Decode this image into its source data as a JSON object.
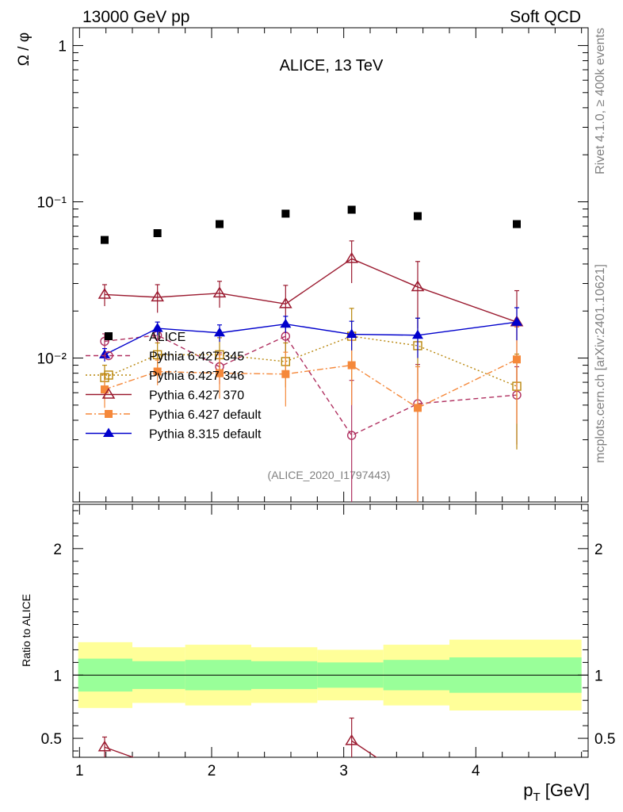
{
  "header": {
    "left_title": "13000 GeV pp",
    "right_title": "Soft QCD",
    "plot_title": "ALICE, 13 TeV",
    "analysis_id": "(ALICE_2020_I1797443)",
    "side_text_top": "Rivet 4.1.0, ≥ 400k events",
    "side_text_bottom": "mcplots.cern.ch [arXiv:2401.10621]"
  },
  "chart_data": [
    {
      "type": "scatter",
      "title": "ALICE, 13 TeV",
      "xlabel": "p_T [GeV]",
      "ylabel": "Ω / φ",
      "yscale": "log",
      "xlim": [
        0.95,
        4.85
      ],
      "ylim": [
        0.0012,
        1.3
      ],
      "x_ticks": [
        1,
        2,
        3,
        4
      ],
      "y_ticks": [
        {
          "value": 1,
          "label": "1"
        },
        {
          "value": 0.1,
          "label": "10⁻¹"
        },
        {
          "value": 0.01,
          "label": "10⁻²"
        }
      ],
      "legend_position": "lower-left",
      "series": [
        {
          "name": "ALICE",
          "color": "#000000",
          "marker": "square-filled",
          "style": "none",
          "x": [
            1.19,
            1.59,
            2.06,
            2.56,
            3.06,
            3.56,
            4.31
          ],
          "y": [
            0.057,
            0.063,
            0.072,
            0.084,
            0.089,
            0.081,
            0.072
          ],
          "yerr": [
            0,
            0,
            0,
            0,
            0,
            0,
            0
          ]
        },
        {
          "name": "Pythia 6.427 345",
          "color": "#b03060",
          "marker": "circle-open",
          "style": "dashed",
          "x": [
            1.19,
            1.59,
            2.06,
            2.56,
            3.06,
            3.56,
            4.31
          ],
          "y": [
            0.0128,
            0.014,
            0.0088,
            0.0138,
            0.0032,
            0.0051,
            0.0058
          ],
          "yerr": [
            0.0015,
            0.0016,
            0.002,
            0.003,
            0.004,
            0.004,
            0.003
          ]
        },
        {
          "name": "Pythia 6.427 346",
          "color": "#b8860b",
          "marker": "square-open",
          "style": "dotted",
          "x": [
            1.19,
            1.59,
            2.06,
            2.56,
            3.06,
            3.56,
            4.31
          ],
          "y": [
            0.0075,
            0.0105,
            0.0105,
            0.0095,
            0.0138,
            0.012,
            0.0066
          ],
          "yerr": [
            0.0015,
            0.002,
            0.003,
            0.003,
            0.007,
            0.006,
            0.004
          ]
        },
        {
          "name": "Pythia 6.427 370",
          "color": "#9b1b30",
          "marker": "triangle-open",
          "style": "solid",
          "x": [
            1.19,
            1.59,
            2.06,
            2.56,
            3.06,
            3.56,
            4.31
          ],
          "y": [
            0.0255,
            0.0245,
            0.026,
            0.0222,
            0.0432,
            0.0285,
            0.017
          ],
          "yerr": [
            0.004,
            0.005,
            0.005,
            0.007,
            0.013,
            0.013,
            0.01
          ]
        },
        {
          "name": "Pythia 6.427 default",
          "color": "#f5883a",
          "marker": "square-filled",
          "style": "dashdot",
          "x": [
            1.19,
            1.59,
            2.06,
            2.56,
            3.06,
            3.56,
            4.31
          ],
          "y": [
            0.0063,
            0.0082,
            0.008,
            0.0079,
            0.009,
            0.0048,
            0.0098
          ],
          "yerr": [
            0.0015,
            0.0015,
            0.0025,
            0.003,
            0.004,
            0.004,
            0.006
          ]
        },
        {
          "name": "Pythia 8.315 default",
          "color": "#0000cc",
          "marker": "triangle-filled",
          "style": "solid",
          "x": [
            1.19,
            1.59,
            2.06,
            2.56,
            3.06,
            3.56,
            4.31
          ],
          "y": [
            0.0105,
            0.0155,
            0.0145,
            0.0165,
            0.0142,
            0.014,
            0.017
          ],
          "yerr": [
            0.001,
            0.0015,
            0.0018,
            0.002,
            0.003,
            0.004,
            0.004
          ]
        }
      ]
    },
    {
      "type": "scatter",
      "xlabel": "p_T [GeV]",
      "ylabel": "Ratio to ALICE",
      "xlim": [
        0.95,
        4.85
      ],
      "ylim": [
        0.35,
        2.35
      ],
      "x_ticks": [
        1,
        2,
        3,
        4
      ],
      "y_ticks": [
        {
          "value": 0.5,
          "label": "0.5"
        },
        {
          "value": 1,
          "label": "1"
        },
        {
          "value": 2,
          "label": "2"
        }
      ],
      "bands": {
        "edges": [
          0.95,
          1.4,
          1.8,
          2.3,
          2.8,
          3.3,
          3.8,
          4.85
        ],
        "inner": [
          0.13,
          0.11,
          0.12,
          0.11,
          0.1,
          0.12,
          0.14
        ],
        "outer": [
          0.13,
          0.11,
          0.12,
          0.11,
          0.1,
          0.12,
          0.14
        ],
        "inner_color": "#99ff99",
        "outer_color": "#ffff99"
      },
      "series": [
        {
          "name": "Pythia 6.427 370",
          "color": "#9b1b30",
          "marker": "triangle-open",
          "style": "solid",
          "x": [
            1.19,
            3.06
          ],
          "y": [
            0.43,
            0.48
          ],
          "yerr": [
            0.08,
            0.18
          ]
        }
      ]
    }
  ]
}
